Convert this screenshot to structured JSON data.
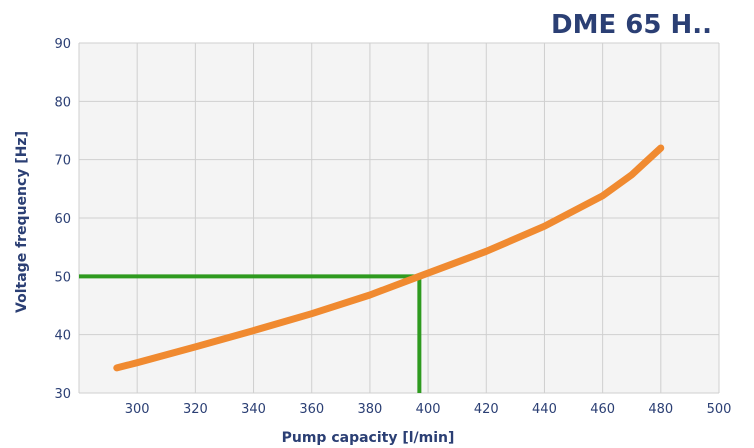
{
  "chart_data": {
    "type": "line",
    "title": "DME 65 H..",
    "xlabel": "Pump capacity [l/min]",
    "ylabel": "Voltage frequency [Hz]",
    "xlim": [
      280,
      500
    ],
    "ylim": [
      30,
      90
    ],
    "xticks": [
      300,
      320,
      340,
      360,
      380,
      400,
      420,
      440,
      460,
      480,
      500
    ],
    "yticks": [
      30,
      40,
      50,
      60,
      70,
      80,
      90
    ],
    "grid": true,
    "series": [
      {
        "color": "#f08a30",
        "x": [
          293,
          300,
          320,
          340,
          360,
          380,
          397,
          420,
          440,
          460,
          470,
          480
        ],
        "y": [
          34.3,
          35.2,
          37.9,
          40.7,
          43.6,
          46.8,
          50.0,
          54.3,
          58.6,
          63.8,
          67.4,
          72.0
        ]
      }
    ],
    "reference_lines": {
      "color": "#2e9a1f",
      "frequency": 50,
      "capacity": 397
    },
    "colors": {
      "plot_background": "#f4f4f4",
      "grid": "#cfcfcf",
      "text": "#2b3f74"
    }
  }
}
